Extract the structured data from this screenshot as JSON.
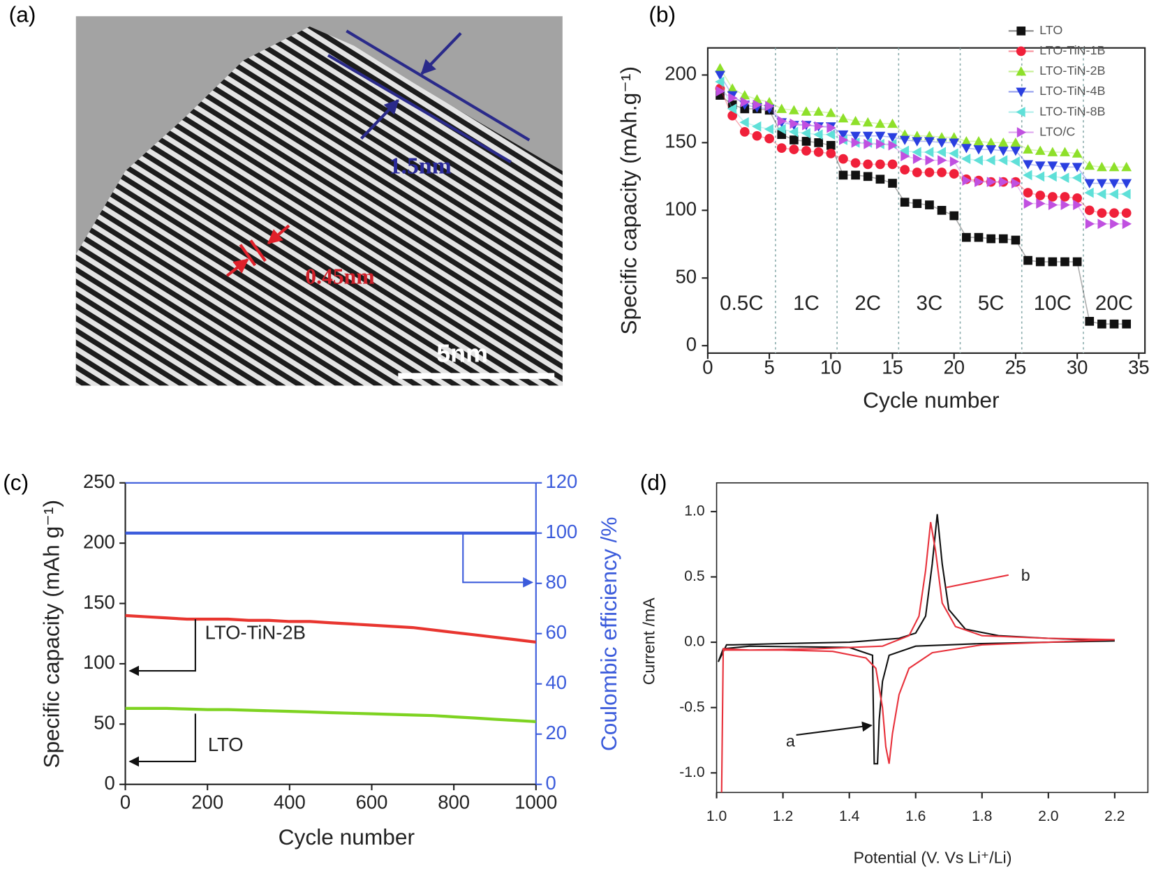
{
  "image_a": {
    "panel_label": "(a)",
    "annotations": [
      "1.5nm",
      "0.45nm",
      "5nm"
    ]
  },
  "chart_data": [
    {
      "type": "scatter",
      "panel_label": "(b)",
      "xlabel": "Cycle number",
      "ylabel": "Specific capacity (mAh.g⁻¹)",
      "x": [
        1,
        2,
        3,
        4,
        5,
        6,
        7,
        8,
        9,
        10,
        11,
        12,
        13,
        14,
        15,
        16,
        17,
        18,
        19,
        20,
        21,
        22,
        23,
        24,
        25,
        26,
        27,
        28,
        29,
        30,
        31,
        32,
        33,
        34
      ],
      "xlim": [
        0,
        35.5
      ],
      "ylim": [
        -5.5,
        220
      ],
      "xticks": [
        0,
        5,
        10,
        15,
        20,
        25,
        30,
        35
      ],
      "yticks": [
        0,
        50,
        100,
        150,
        200
      ],
      "dividers": [
        5.5,
        10.5,
        15.5,
        20.5,
        25.5,
        30.5
      ],
      "rate_labels": [
        "0.5C",
        "1C",
        "2C",
        "3C",
        "5C",
        "10C",
        "20C"
      ],
      "legend": "upper right",
      "series": [
        {
          "name": "LTO",
          "color": "#111111",
          "marker": "square",
          "values": [
            185,
            178,
            175,
            175,
            174,
            156,
            152,
            151,
            150,
            148,
            126,
            126,
            125,
            123,
            120,
            106,
            105,
            104,
            100,
            96,
            80,
            80,
            79,
            79,
            78,
            63,
            62,
            62,
            62,
            62,
            18,
            16,
            16,
            16
          ]
        },
        {
          "name": "LTO-TiN-1B",
          "color": "#f0203a",
          "marker": "circle",
          "values": [
            190,
            170,
            158,
            155,
            153,
            146,
            145,
            144,
            143,
            142,
            138,
            135,
            134,
            134,
            134,
            130,
            128,
            128,
            128,
            127,
            123,
            122,
            121,
            121,
            121,
            113,
            111,
            110,
            110,
            109,
            100,
            98,
            98,
            98
          ]
        },
        {
          "name": "LTO-TiN-2B",
          "color": "#8ee02a",
          "marker": "triangle-up",
          "values": [
            205,
            190,
            185,
            182,
            180,
            175,
            174,
            173,
            173,
            172,
            168,
            166,
            165,
            164,
            164,
            156,
            155,
            155,
            154,
            154,
            151,
            151,
            150,
            150,
            150,
            145,
            144,
            143,
            143,
            142,
            133,
            132,
            132,
            132
          ]
        },
        {
          "name": "LTO-TiN-4B",
          "color": "#2a3fe0",
          "marker": "triangle-down",
          "values": [
            200,
            185,
            178,
            176,
            175,
            165,
            163,
            163,
            162,
            162,
            156,
            155,
            155,
            155,
            154,
            152,
            151,
            151,
            150,
            150,
            146,
            145,
            145,
            144,
            144,
            134,
            133,
            133,
            132,
            132,
            120,
            120,
            120,
            120
          ]
        },
        {
          "name": "LTO-TiN-8B",
          "color": "#5fe0d8",
          "marker": "triangle-left",
          "values": [
            195,
            175,
            165,
            162,
            160,
            160,
            158,
            157,
            156,
            156,
            152,
            150,
            150,
            149,
            149,
            144,
            143,
            143,
            143,
            142,
            138,
            137,
            137,
            137,
            136,
            126,
            125,
            125,
            124,
            124,
            113,
            112,
            112,
            112
          ]
        },
        {
          "name": "LTO/C",
          "color": "#c050e0",
          "marker": "triangle-right",
          "values": [
            188,
            183,
            180,
            178,
            177,
            166,
            164,
            163,
            162,
            161,
            152,
            150,
            149,
            149,
            148,
            140,
            138,
            137,
            137,
            136,
            122,
            121,
            121,
            121,
            120,
            105,
            105,
            104,
            104,
            104,
            90,
            90,
            90,
            90
          ]
        }
      ]
    },
    {
      "type": "line",
      "panel_label": "(c)",
      "xlabel": "Cycle number",
      "ylabel": "Specific capacity (mAh g⁻¹)",
      "y2label": "Coulombic efficiency /%",
      "x": [
        0,
        50,
        100,
        150,
        200,
        250,
        300,
        350,
        400,
        450,
        500,
        550,
        600,
        650,
        700,
        750,
        800,
        850,
        900,
        950,
        1000
      ],
      "xlim": [
        0,
        1000
      ],
      "ylim": [
        0,
        250
      ],
      "y2lim": [
        0,
        120
      ],
      "xticks": [
        0,
        200,
        400,
        600,
        800,
        1000
      ],
      "yticks": [
        0,
        50,
        100,
        150,
        200,
        250
      ],
      "y2ticks": [
        0,
        20,
        40,
        60,
        80,
        100,
        120
      ],
      "series": [
        {
          "name": "LTO-TiN-2B",
          "color": "#e8352f",
          "values": [
            140,
            139,
            138,
            137,
            137,
            137,
            136,
            136,
            135,
            135,
            134,
            133,
            132,
            131,
            130,
            128,
            126,
            124,
            122,
            120,
            118
          ]
        },
        {
          "name": "LTO",
          "color": "#7ed321",
          "values": [
            63,
            63,
            63,
            62.5,
            62,
            62,
            61.5,
            61,
            60.5,
            60,
            59.5,
            59,
            58.5,
            58,
            57.5,
            57,
            56,
            55,
            54,
            53,
            52
          ]
        },
        {
          "color": "#3b5bdb",
          "axis": "y2",
          "values": [
            100,
            100,
            100,
            100,
            100,
            100,
            100,
            100,
            100,
            100,
            100,
            100,
            100,
            100,
            100,
            100,
            100,
            100,
            100,
            100,
            100
          ]
        }
      ]
    },
    {
      "type": "line",
      "panel_label": "(d)",
      "xlabel": "Potential (V. Vs Li⁺/Li)",
      "ylabel": "Current /mA",
      "xlim": [
        1.0,
        2.3
      ],
      "ylim": [
        -1.15,
        1.22
      ],
      "xticks": [
        {
          "value": 1,
          "label": "1.0"
        },
        1.2,
        1.4,
        1.6,
        1.8,
        {
          "value": 2,
          "label": "2.0"
        },
        2.2
      ],
      "yticks": [
        {
          "value": -1,
          "label": "-1.0"
        },
        -0.5,
        {
          "value": 0,
          "label": "0.0"
        },
        0.5,
        {
          "value": 1,
          "label": "1.0"
        }
      ],
      "series": [
        {
          "name": "a",
          "color": "#111111",
          "x": [
            1.005,
            1.03,
            1.05,
            1.2,
            1.4,
            1.55,
            1.6,
            1.63,
            1.65,
            1.665,
            1.68,
            1.7,
            1.75,
            1.85,
            2.0,
            2.2,
            2.0,
            1.8,
            1.6,
            1.52,
            1.5,
            1.49,
            1.485,
            1.475,
            1.47,
            1.4,
            1.1,
            1.02,
            1.005
          ],
          "values": [
            -0.15,
            -0.02,
            -0.02,
            -0.01,
            0.0,
            0.03,
            0.07,
            0.2,
            0.6,
            0.98,
            0.6,
            0.25,
            0.1,
            0.05,
            0.03,
            0.01,
            0.0,
            -0.01,
            -0.03,
            -0.1,
            -0.3,
            -0.6,
            -0.93,
            -0.93,
            -0.1,
            -0.04,
            -0.03,
            -0.05,
            -0.15
          ]
        },
        {
          "name": "b",
          "color": "#e8323c",
          "x": [
            1.015,
            1.02,
            1.1,
            1.3,
            1.5,
            1.58,
            1.61,
            1.63,
            1.645,
            1.66,
            1.68,
            1.72,
            1.8,
            2.0,
            2.2,
            2.0,
            1.8,
            1.65,
            1.58,
            1.55,
            1.53,
            1.52,
            1.51,
            1.5,
            1.48,
            1.45,
            1.35,
            1.2,
            1.05,
            1.02,
            1.015
          ],
          "values": [
            -1.15,
            -0.05,
            -0.06,
            -0.05,
            -0.03,
            0.05,
            0.2,
            0.55,
            0.92,
            0.7,
            0.3,
            0.12,
            0.05,
            0.03,
            0.02,
            0.0,
            -0.02,
            -0.08,
            -0.2,
            -0.4,
            -0.7,
            -0.93,
            -0.8,
            -0.5,
            -0.2,
            -0.12,
            -0.07,
            -0.06,
            -0.06,
            -0.06,
            -1.15
          ]
        }
      ]
    }
  ]
}
